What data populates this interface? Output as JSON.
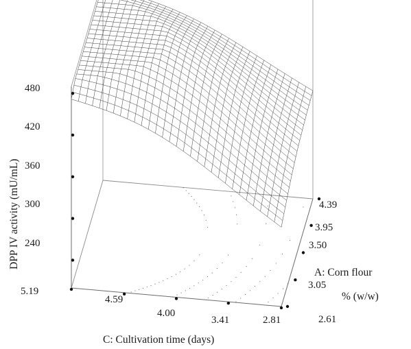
{
  "chart_data": {
    "type": "surface3d",
    "title": "",
    "zlabel": "DPP IV activity (mU/mL)",
    "xlabel": "C: Cultivation time (days)",
    "ylabel_line1": "A: Corn flour",
    "ylabel_line2": "% (w/w)",
    "z_ticks": [
      "240",
      "300",
      "360",
      "420",
      "480"
    ],
    "x_ticks": [
      "5.19",
      "4.59",
      "4.00",
      "3.41",
      "2.81"
    ],
    "y_ticks": [
      "2.61",
      "3.05",
      "3.50",
      "3.95",
      "4.39"
    ],
    "x_range": [
      2.81,
      5.19
    ],
    "y_range": [
      2.61,
      4.39
    ],
    "z_range": [
      200,
      490
    ],
    "surface_corners": {
      "x5.19_y2.61": 440,
      "x5.19_y4.39": 455,
      "x2.81_y4.39": 345,
      "x2.81_y2.61": 300
    },
    "surface_peak": {
      "x": 4.3,
      "y": 3.4,
      "z": 482
    },
    "colors": {
      "axis": "#6b6b6b",
      "mesh": "#3a3a3a",
      "contour": "#4a4a4a"
    }
  }
}
